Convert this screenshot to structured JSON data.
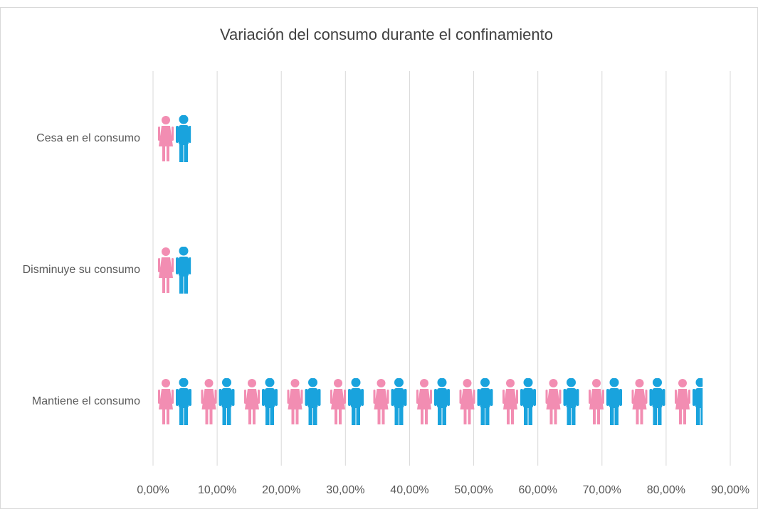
{
  "chart_data": {
    "type": "pictograph_bar",
    "title": "Variación del consumo durante el confinamiento",
    "categories": [
      "Cesa en el consumo",
      "Disminuye su consumo",
      "Mantiene el consumo"
    ],
    "values": [
      5.9,
      5.9,
      85.7
    ],
    "colors": [
      "#f28db2",
      "#19a3dd"
    ],
    "xlim": [
      0,
      90
    ],
    "xticks": [
      {
        "value": 0,
        "label": "0,00%"
      },
      {
        "value": 10,
        "label": "10,00%"
      },
      {
        "value": 20,
        "label": "20,00%"
      },
      {
        "value": 30,
        "label": "30,00%"
      },
      {
        "value": 40,
        "label": "40,00%"
      },
      {
        "value": 50,
        "label": "50,00%"
      },
      {
        "value": 60,
        "label": "60,00%"
      },
      {
        "value": 70,
        "label": "70,00%"
      },
      {
        "value": 80,
        "label": "80,00%"
      },
      {
        "value": 90,
        "label": "90,00%"
      }
    ],
    "grid": true
  }
}
